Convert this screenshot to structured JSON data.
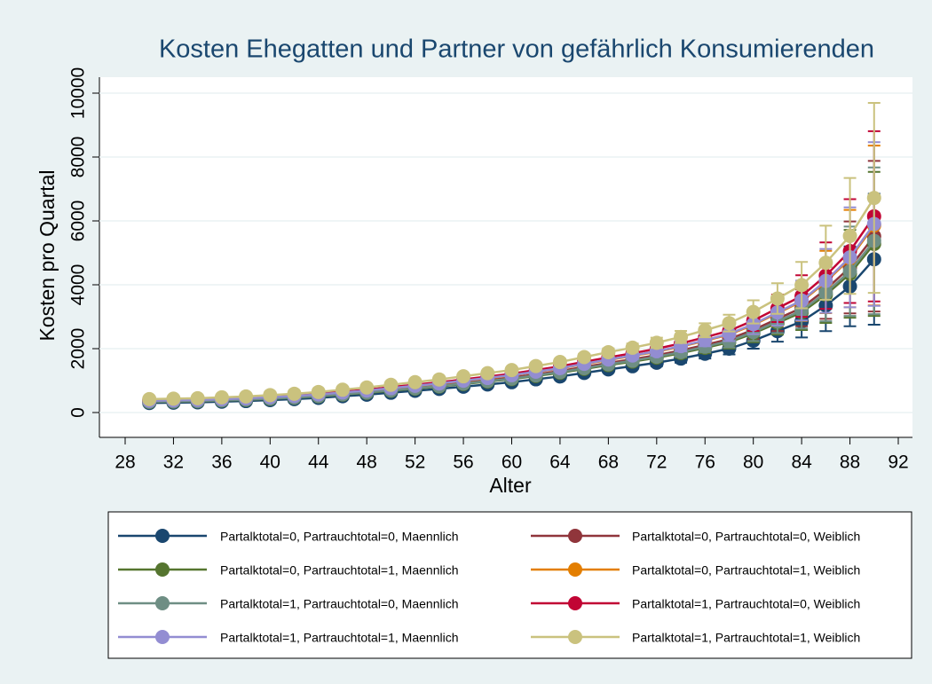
{
  "chart_data": {
    "type": "line",
    "title": "Kosten Ehegatten und Partner von gefährlich Konsumierenden",
    "x_label": "Alter",
    "y_label": "Kosten pro Quartal",
    "x": [
      30,
      32,
      34,
      36,
      38,
      40,
      42,
      44,
      46,
      48,
      50,
      52,
      54,
      56,
      58,
      60,
      62,
      64,
      66,
      68,
      70,
      72,
      74,
      76,
      78,
      80,
      82,
      84,
      86,
      88,
      90
    ],
    "xlim": [
      28,
      92
    ],
    "xticks": [
      28,
      32,
      36,
      40,
      44,
      48,
      52,
      56,
      60,
      64,
      68,
      72,
      76,
      80,
      84,
      88,
      92
    ],
    "ylim": [
      0,
      10000
    ],
    "yticks": [
      0,
      2000,
      4000,
      6000,
      8000,
      10000
    ],
    "grid": true,
    "legend": "bottom",
    "series": [
      {
        "name": "Partalktotal=0, Partrauchtotal=0, Maennlich",
        "color": "#1a476f",
        "values": [
          300,
          310,
          320,
          340,
          360,
          390,
          420,
          460,
          510,
          560,
          620,
          680,
          740,
          810,
          880,
          950,
          1040,
          1130,
          1240,
          1350,
          1450,
          1560,
          1690,
          1840,
          2000,
          2250,
          2550,
          2850,
          3350,
          3950,
          4800
        ],
        "errors": [
          20,
          20,
          20,
          20,
          20,
          25,
          25,
          30,
          30,
          35,
          35,
          40,
          40,
          45,
          50,
          55,
          60,
          65,
          70,
          80,
          90,
          110,
          130,
          150,
          180,
          250,
          330,
          500,
          800,
          1250,
          2050
        ]
      },
      {
        "name": "Partalktotal=0, Partrauchtotal=0, Weiblich",
        "color": "#90353b",
        "values": [
          345,
          357,
          368,
          391,
          414,
          449,
          483,
          529,
          587,
          644,
          713,
          782,
          851,
          932,
          1012,
          1093,
          1196,
          1300,
          1426,
          1553,
          1668,
          1794,
          1944,
          2116,
          2300,
          2588,
          2933,
          3278,
          3853,
          4543,
          5520
        ],
        "errors": [
          23,
          23,
          23,
          23,
          23,
          29,
          29,
          35,
          35,
          40,
          40,
          46,
          46,
          52,
          58,
          63,
          69,
          75,
          81,
          92,
          104,
          127,
          150,
          173,
          207,
          288,
          380,
          575,
          920,
          1438,
          2358
        ]
      },
      {
        "name": "Partalktotal=0, Partrauchtotal=1, Maennlich",
        "color": "#55752f",
        "values": [
          330,
          341,
          352,
          374,
          396,
          429,
          462,
          506,
          561,
          616,
          682,
          748,
          814,
          891,
          968,
          1045,
          1144,
          1243,
          1364,
          1485,
          1595,
          1716,
          1859,
          2024,
          2200,
          2475,
          2805,
          3135,
          3685,
          4345,
          5280
        ],
        "errors": [
          22,
          22,
          22,
          22,
          22,
          28,
          28,
          33,
          33,
          39,
          39,
          44,
          44,
          50,
          55,
          61,
          66,
          72,
          77,
          88,
          99,
          121,
          143,
          165,
          198,
          275,
          363,
          550,
          880,
          1375,
          2255
        ]
      },
      {
        "name": "Partalktotal=0, Partrauchtotal=1, Weiblich",
        "color": "#e37e00",
        "values": [
          366,
          378,
          390,
          415,
          439,
          476,
          512,
          561,
          622,
          683,
          756,
          830,
          903,
          988,
          1074,
          1159,
          1269,
          1379,
          1513,
          1647,
          1769,
          1903,
          2062,
          2245,
          2440,
          2745,
          3111,
          3477,
          4087,
          4819,
          5856
        ],
        "errors": [
          24,
          24,
          24,
          24,
          24,
          31,
          31,
          37,
          37,
          43,
          43,
          49,
          49,
          55,
          61,
          67,
          73,
          79,
          85,
          98,
          110,
          134,
          159,
          183,
          220,
          305,
          403,
          610,
          976,
          1525,
          2501
        ]
      },
      {
        "name": "Partalktotal=1, Partrauchtotal=0, Maennlich",
        "color": "#6e8e84",
        "values": [
          336,
          347,
          358,
          381,
          403,
          437,
          470,
          515,
          571,
          627,
          694,
          762,
          829,
          907,
          986,
          1064,
          1165,
          1266,
          1389,
          1512,
          1624,
          1747,
          1893,
          2061,
          2240,
          2520,
          2856,
          3192,
          3752,
          4424,
          5376
        ],
        "errors": [
          22,
          22,
          22,
          22,
          22,
          28,
          28,
          34,
          34,
          39,
          39,
          45,
          45,
          50,
          56,
          62,
          67,
          73,
          78,
          90,
          101,
          123,
          146,
          168,
          202,
          280,
          370,
          560,
          896,
          1400,
          2296
        ]
      },
      {
        "name": "Partalktotal=1, Partrauchtotal=0, Weiblich",
        "color": "#c10534",
        "values": [
          384,
          397,
          410,
          435,
          461,
          499,
          538,
          589,
          653,
          717,
          794,
          870,
          947,
          1037,
          1126,
          1216,
          1331,
          1446,
          1587,
          1728,
          1856,
          1997,
          2163,
          2355,
          2560,
          2880,
          3264,
          3648,
          4288,
          5056,
          6144
        ],
        "errors": [
          26,
          26,
          26,
          26,
          26,
          33,
          33,
          39,
          39,
          46,
          46,
          52,
          52,
          59,
          65,
          72,
          78,
          85,
          91,
          104,
          117,
          143,
          169,
          195,
          234,
          325,
          429,
          650,
          1040,
          1625,
          2665
        ]
      },
      {
        "name": "Partalktotal=1, Partrauchtotal=1, Maennlich",
        "color": "#938dd2",
        "values": [
          369,
          381,
          394,
          418,
          443,
          480,
          517,
          566,
          627,
          689,
          763,
          836,
          910,
          996,
          1082,
          1169,
          1279,
          1390,
          1525,
          1661,
          1784,
          1919,
          2079,
          2263,
          2460,
          2768,
          3137,
          3506,
          4121,
          4859,
          5904
        ],
        "errors": [
          25,
          25,
          25,
          25,
          25,
          31,
          31,
          38,
          38,
          44,
          44,
          50,
          50,
          56,
          63,
          69,
          75,
          81,
          88,
          100,
          113,
          138,
          163,
          188,
          225,
          313,
          413,
          625,
          1000,
          1563,
          2563
        ]
      },
      {
        "name": "Partalktotal=1, Partrauchtotal=1, Weiblich",
        "color": "#cac27e",
        "values": [
          420,
          434,
          448,
          476,
          504,
          546,
          588,
          644,
          714,
          784,
          868,
          952,
          1036,
          1134,
          1232,
          1330,
          1456,
          1582,
          1736,
          1890,
          2030,
          2184,
          2366,
          2576,
          2800,
          3150,
          3570,
          3990,
          4690,
          5530,
          6720
        ],
        "errors": [
          29,
          29,
          29,
          29,
          29,
          36,
          36,
          44,
          44,
          51,
          51,
          58,
          58,
          65,
          73,
          80,
          87,
          94,
          102,
          116,
          131,
          160,
          189,
          218,
          261,
          363,
          479,
          725,
          1160,
          1813,
          2973
        ]
      }
    ]
  }
}
